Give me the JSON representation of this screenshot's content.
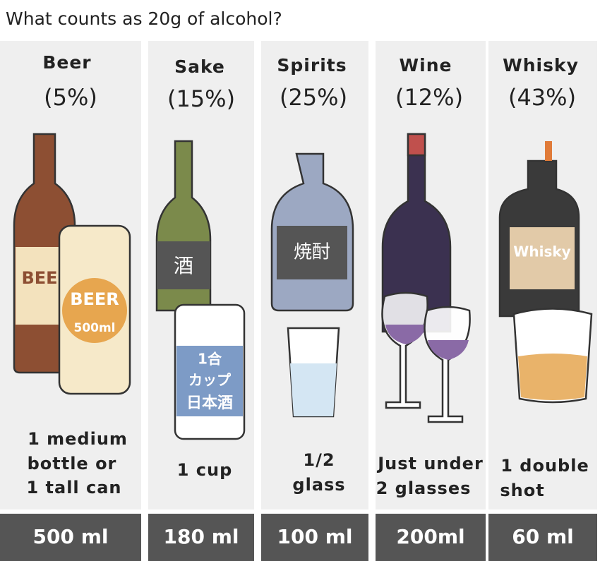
{
  "title": "What counts as 20g of alcohol?",
  "columns": [
    {
      "name": "Beer",
      "strength": "(5%)",
      "description": [
        "1 medium",
        "bottle or",
        "1 tall can"
      ],
      "amount": "500 ml",
      "bottle_label": "BEE",
      "container_label": [
        "BEER",
        "500ml"
      ]
    },
    {
      "name": "Sake",
      "strength": "(15%)",
      "description": [
        "1 cup"
      ],
      "amount": "180 ml",
      "bottle_label": "酒",
      "container_label": [
        "1合",
        "カップ",
        "日本酒"
      ]
    },
    {
      "name": "Spirits",
      "strength": "(25%)",
      "description": [
        "1/2",
        "glass"
      ],
      "amount": "100 ml",
      "bottle_label": "焼酎"
    },
    {
      "name": "Wine",
      "strength": "(12%)",
      "description": [
        "Just under",
        "2 glasses"
      ],
      "amount": "200ml"
    },
    {
      "name": "Whisky",
      "strength": "(43%)",
      "description": [
        "1 double",
        "shot"
      ],
      "amount": "60 ml",
      "bottle_label": "Whisky"
    }
  ]
}
